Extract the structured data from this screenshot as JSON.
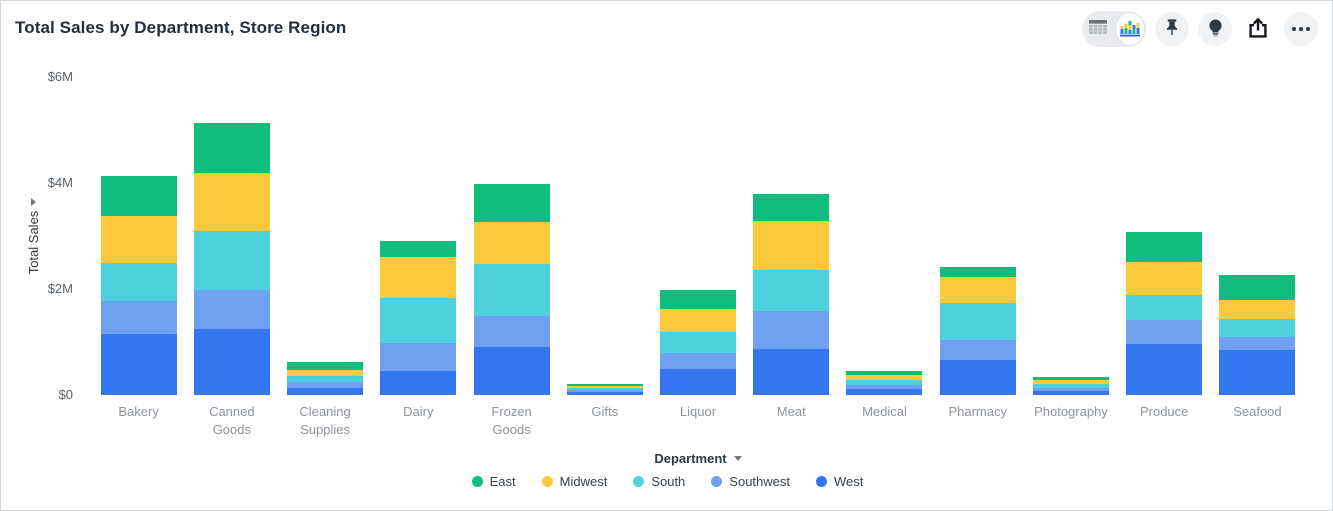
{
  "toolbar": {
    "view_toggle": {
      "options": [
        "table",
        "chart"
      ],
      "selected": "chart"
    },
    "buttons": [
      {
        "name": "pin",
        "icon": "pushpin-icon"
      },
      {
        "name": "insights",
        "icon": "lightbulb-icon"
      },
      {
        "name": "share",
        "icon": "share-icon"
      },
      {
        "name": "more",
        "icon": "ellipsis-icon"
      }
    ]
  },
  "chart_data": {
    "type": "bar",
    "stacked": true,
    "title": "Total Sales by Department, Store Region",
    "xlabel": "Department",
    "ylabel": "Total Sales",
    "unit": "millions of dollars",
    "ylim": [
      0,
      6
    ],
    "yticks": [
      {
        "value": 0,
        "label": "$0"
      },
      {
        "value": 2,
        "label": "$2M"
      },
      {
        "value": 4,
        "label": "$4M"
      },
      {
        "value": 6,
        "label": "$6M"
      }
    ],
    "grid": false,
    "legend_position": "bottom",
    "categories": [
      "Bakery",
      "Canned Goods",
      "Cleaning Supplies",
      "Dairy",
      "Frozen Goods",
      "Gifts",
      "Liquor",
      "Meat",
      "Medical",
      "Pharmacy",
      "Photography",
      "Produce",
      "Seafood"
    ],
    "series": [
      {
        "name": "East",
        "color": "#10bd7c",
        "values": [
          0.75,
          0.95,
          0.14,
          0.3,
          0.72,
          0.03,
          0.35,
          0.52,
          0.08,
          0.2,
          0.06,
          0.57,
          0.47
        ]
      },
      {
        "name": "Midwest",
        "color": "#fbc93d",
        "values": [
          0.88,
          1.1,
          0.12,
          0.78,
          0.78,
          0.04,
          0.44,
          0.92,
          0.09,
          0.48,
          0.07,
          0.62,
          0.37
        ]
      },
      {
        "name": "South",
        "color": "#4dd2dd",
        "values": [
          0.73,
          1.1,
          0.12,
          0.84,
          0.98,
          0.04,
          0.4,
          0.77,
          0.11,
          0.7,
          0.08,
          0.48,
          0.34
        ]
      },
      {
        "name": "Southwest",
        "color": "#70a1f1",
        "values": [
          0.62,
          0.74,
          0.1,
          0.54,
          0.59,
          0.04,
          0.3,
          0.72,
          0.07,
          0.37,
          0.06,
          0.44,
          0.25
        ]
      },
      {
        "name": "West",
        "color": "#3376ee",
        "values": [
          1.15,
          1.25,
          0.14,
          0.45,
          0.91,
          0.06,
          0.49,
          0.87,
          0.11,
          0.67,
          0.07,
          0.97,
          0.84
        ]
      }
    ]
  }
}
